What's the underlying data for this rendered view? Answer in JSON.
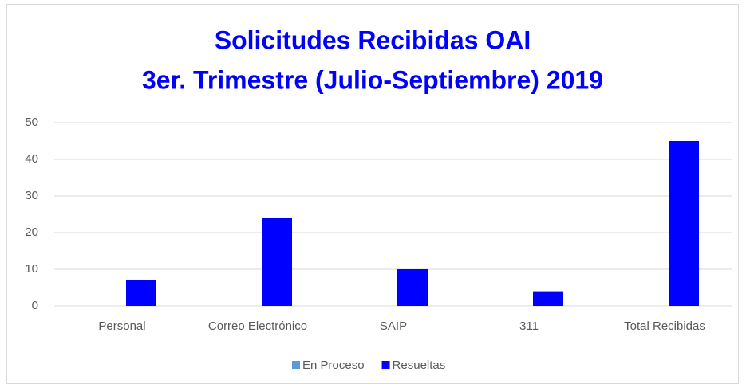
{
  "chart_data": {
    "type": "bar",
    "title": [
      "Solicitudes Recibidas OAI",
      "3er. Trimestre (Julio-Septiembre) 2019"
    ],
    "categories": [
      "Personal",
      "Correo Electrónico",
      "SAIP",
      "311",
      "Total Recibidas"
    ],
    "series": [
      {
        "name": "En Proceso",
        "color": "#5b9bd5",
        "values": [
          0,
          0,
          0,
          0,
          0
        ]
      },
      {
        "name": "Resueltas",
        "color": "#0000ff",
        "values": [
          7,
          24,
          10,
          4,
          45
        ]
      }
    ],
    "ylim": [
      0,
      50
    ],
    "yticks": [
      0,
      10,
      20,
      30,
      40,
      50
    ],
    "grid": true,
    "legend": "bottom"
  }
}
